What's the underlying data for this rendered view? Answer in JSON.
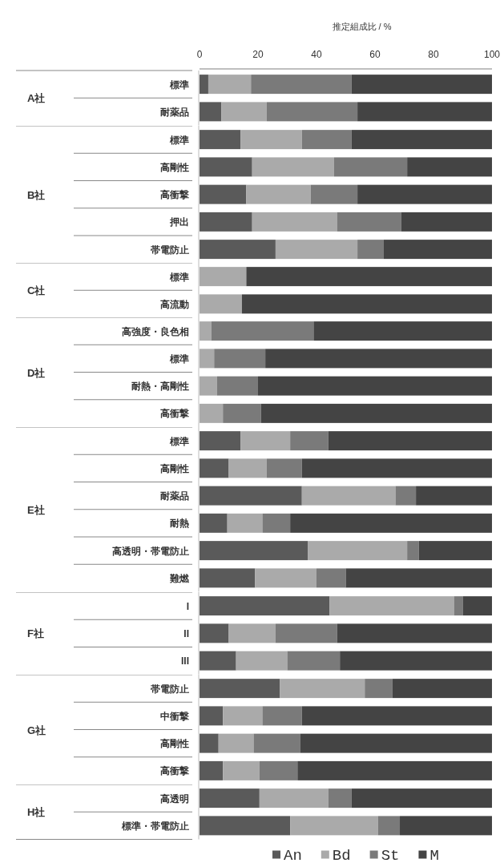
{
  "chart_data": [
    {
      "type": "bar",
      "orientation": "horizontal",
      "stacked": true,
      "annotations": [
        "A社"
      ],
      "xlabel": "推定組成比 / %",
      "xlim": [
        0,
        100
      ],
      "xticks": [
        0,
        20,
        40,
        60,
        80,
        100
      ],
      "categories": [
        "標準",
        "耐薬品"
      ],
      "series": [
        {
          "color": "#5a5a5a",
          "values": [
            3,
            7.5
          ]
        },
        {
          "color": "#aaaaaa",
          "values": [
            14.6,
            15.5
          ]
        },
        {
          "color": "#7a7a7a",
          "values": [
            34.4,
            31
          ]
        },
        {
          "color": "#444444",
          "values": [
            48,
            46
          ]
        }
      ]
    },
    {
      "type": "bar",
      "orientation": "horizontal",
      "stacked": true,
      "annotations": [
        "B社"
      ],
      "xlim": [
        0,
        100
      ],
      "tick_labels": "y",
      "categories": [
        "標準",
        "高剛性",
        "高衝撃",
        "押出",
        "帯電防止"
      ],
      "series": [
        {
          "color": "#5a5a5a",
          "values": [
            14,
            18,
            16,
            18,
            26
          ]
        },
        {
          "color": "#aaaaaa",
          "values": [
            21,
            28,
            22,
            29,
            28
          ]
        },
        {
          "color": "#7a7a7a",
          "values": [
            17,
            25,
            16,
            22,
            9
          ]
        },
        {
          "color": "#444444",
          "values": [
            48,
            29,
            46,
            31,
            37
          ]
        }
      ]
    },
    {
      "type": "bar",
      "orientation": "horizontal",
      "stacked": true,
      "annotations": [
        "C社"
      ],
      "xlim": [
        0,
        100
      ],
      "tick_labels": "y",
      "categories": [
        "標準",
        "高流動"
      ],
      "series": [
        {
          "color": "#5a5a5a",
          "values": [
            0,
            0
          ]
        },
        {
          "color": "#aaaaaa",
          "values": [
            16,
            14.5
          ]
        },
        {
          "color": "#7a7a7a",
          "values": [
            0,
            0
          ]
        },
        {
          "color": "#444444",
          "values": [
            84,
            85.5
          ]
        }
      ]
    },
    {
      "type": "bar",
      "orientation": "horizontal",
      "stacked": true,
      "annotations": [
        "D社"
      ],
      "xlim": [
        0,
        100
      ],
      "tick_labels": "y",
      "categories": [
        "高強度・良色相",
        "標準",
        "耐熱・高剛性",
        "高衝撃"
      ],
      "series": [
        {
          "color": "#5a5a5a",
          "values": [
            0,
            0,
            0,
            0
          ]
        },
        {
          "color": "#aaaaaa",
          "values": [
            4,
            5,
            6,
            8
          ]
        },
        {
          "color": "#7a7a7a",
          "values": [
            35,
            17.5,
            14,
            13
          ]
        },
        {
          "color": "#444444",
          "values": [
            61,
            77.5,
            80,
            79
          ]
        }
      ]
    },
    {
      "type": "bar",
      "orientation": "horizontal",
      "stacked": true,
      "annotations": [
        "E社"
      ],
      "xlim": [
        0,
        100
      ],
      "tick_labels": "y",
      "categories": [
        "標準",
        "高剛性",
        "耐薬品",
        "耐熱",
        "高透明・帯電防止",
        "難燃"
      ],
      "series": [
        {
          "color": "#5a5a5a",
          "values": [
            14,
            10,
            35,
            9.5,
            37,
            19
          ]
        },
        {
          "color": "#aaaaaa",
          "values": [
            17,
            13,
            32,
            12,
            34,
            21
          ]
        },
        {
          "color": "#7a7a7a",
          "values": [
            13,
            12,
            7,
            9.5,
            4,
            10
          ]
        },
        {
          "color": "#444444",
          "values": [
            56,
            65,
            26,
            69,
            25,
            50
          ]
        }
      ]
    },
    {
      "type": "bar",
      "orientation": "horizontal",
      "stacked": true,
      "annotations": [
        "F社"
      ],
      "xlim": [
        0,
        100
      ],
      "tick_labels": "y",
      "categories": [
        "I",
        "II",
        "III"
      ],
      "series": [
        {
          "color": "#5a5a5a",
          "values": [
            44.5,
            10,
            12.5
          ]
        },
        {
          "color": "#aaaaaa",
          "values": [
            42.5,
            16,
            17.5
          ]
        },
        {
          "color": "#7a7a7a",
          "values": [
            3,
            21,
            18
          ]
        },
        {
          "color": "#444444",
          "values": [
            10,
            53,
            52
          ]
        }
      ]
    },
    {
      "type": "bar",
      "orientation": "horizontal",
      "stacked": true,
      "annotations": [
        "G社"
      ],
      "xlim": [
        0,
        100
      ],
      "tick_labels": "y",
      "categories": [
        "帯電防止",
        "中衝撃",
        "高剛性",
        "高衝撃"
      ],
      "series": [
        {
          "color": "#5a5a5a",
          "values": [
            27.5,
            8,
            6.5,
            8
          ]
        },
        {
          "color": "#aaaaaa",
          "values": [
            29,
            13.5,
            12,
            12.5
          ]
        },
        {
          "color": "#7a7a7a",
          "values": [
            9.5,
            13.5,
            16,
            13
          ]
        },
        {
          "color": "#444444",
          "values": [
            34,
            65,
            65.5,
            66.5
          ]
        }
      ]
    },
    {
      "type": "bar",
      "orientation": "horizontal",
      "stacked": true,
      "annotations": [
        "H社"
      ],
      "xlim": [
        0,
        100
      ],
      "tick_labels": "y",
      "legend": "bottom right",
      "categories": [
        "高透明",
        "標準・帯電防止"
      ],
      "series": [
        {
          "name": "An",
          "color": "#5a5a5a",
          "values": [
            20.5,
            31
          ]
        },
        {
          "name": "Bd",
          "color": "#aaaaaa",
          "values": [
            23.5,
            30
          ]
        },
        {
          "name": "St",
          "color": "#7a7a7a",
          "values": [
            8,
            7.5
          ]
        },
        {
          "name": "M",
          "color": "#444444",
          "values": [
            48,
            31.5
          ]
        }
      ]
    }
  ]
}
